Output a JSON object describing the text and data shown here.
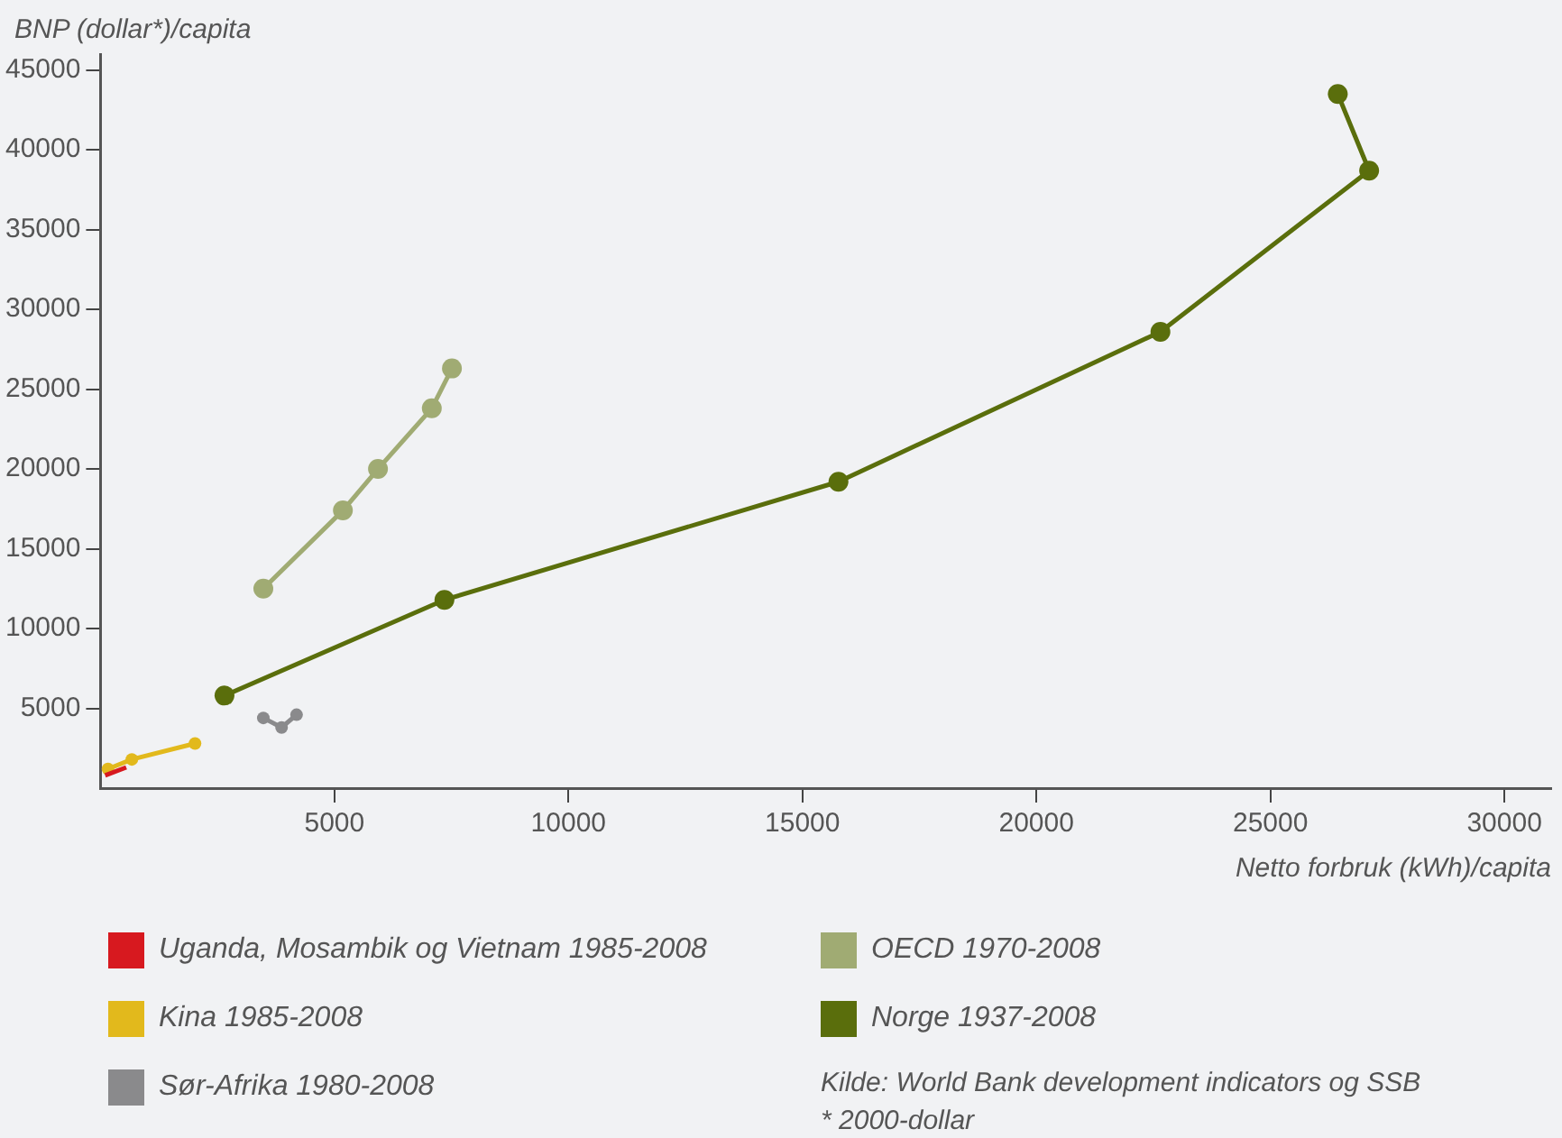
{
  "chart_data": {
    "type": "line",
    "ylabel": "BNP (dollar*)/capita",
    "xlabel": "Netto forbruk (kWh)/capita",
    "xlim": [
      0,
      31000
    ],
    "xticks": [
      5000,
      10000,
      15000,
      20000,
      25000,
      30000
    ],
    "ylim": [
      0,
      46000
    ],
    "yticks": [
      5000,
      10000,
      15000,
      20000,
      25000,
      30000,
      35000,
      40000,
      45000
    ],
    "grid": false,
    "legend": "bottom",
    "marker": "circle",
    "line_style": "solid",
    "series": [
      {
        "name": "Uganda, Mosambik og Vietnam 1985-2008",
        "color": "#d7191f",
        "marker": "none",
        "x": [
          100,
          550
        ],
        "values": [
          800,
          1300
        ]
      },
      {
        "name": "Kina 1985-2008",
        "color": "#e2b91c",
        "x": [
          160,
          670,
          2020
        ],
        "values": [
          1200,
          1800,
          2800
        ]
      },
      {
        "name": "Sør-Afrika 1980-2008",
        "color": "#8a8a8c",
        "x": [
          3480,
          3870,
          4190
        ],
        "values": [
          4400,
          3800,
          4600
        ]
      },
      {
        "name": "OECD 1970-2008",
        "color": "#a0ab73",
        "x": [
          3480,
          5180,
          5930,
          7080,
          7510
        ],
        "values": [
          12500,
          17400,
          20000,
          23800,
          26300
        ]
      },
      {
        "name": "Norge 1937-2008",
        "color": "#5a6e0c",
        "x": [
          2650,
          7350,
          15770,
          22650,
          27110,
          26440
        ],
        "values": [
          5800,
          11800,
          19200,
          28600,
          38700,
          43500
        ]
      }
    ],
    "annotations": [
      "Kilde: World Bank development indicators og SSB",
      "* 2000-dollar"
    ]
  }
}
